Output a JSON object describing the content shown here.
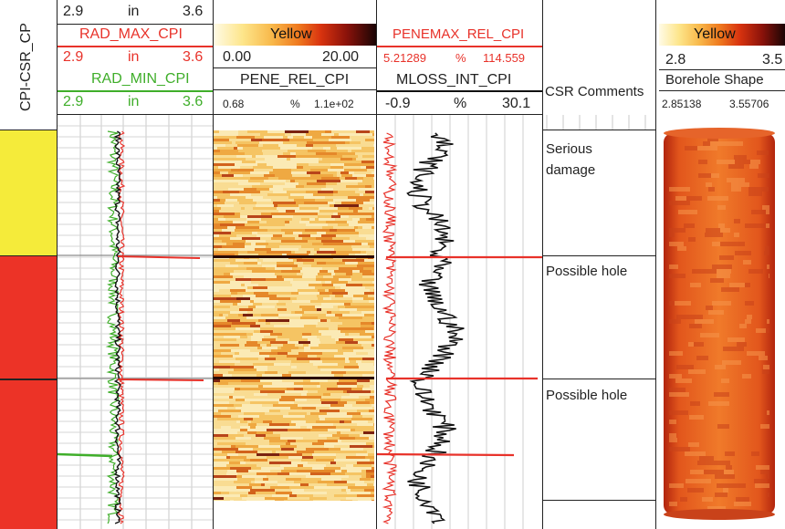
{
  "left_track": {
    "title": "CPI-CSR_CP",
    "zones": [
      {
        "color": "#f5eb3a",
        "start": 0.0,
        "end": 0.365
      },
      {
        "color": "#ec3327",
        "start": 0.365,
        "end": 0.72
      },
      {
        "color": "#ec3327",
        "start": 0.72,
        "end": 1.0
      }
    ]
  },
  "radius_track": {
    "row1": {
      "min": "2.9",
      "unit": "in",
      "max": "3.6"
    },
    "max_curve": {
      "name": "RAD_MAX_CPI",
      "min": "2.9",
      "unit": "in",
      "max": "3.6",
      "color": "#e8322a"
    },
    "min_curve": {
      "name": "RAD_MIN_CPI",
      "min": "2.9",
      "unit": "in",
      "max": "3.6",
      "color": "#3fae2a"
    }
  },
  "pene_track": {
    "palette_label": "Yellow",
    "scale_min": "0.00",
    "scale_max": "20.00",
    "curve_name": "PENE_REL_CPI",
    "range_min": "0.68",
    "unit": "%",
    "range_max": "1.1e+02"
  },
  "mloss_track": {
    "max_curve": {
      "name": "PENEMAX_REL_CPI",
      "min": "5.21289",
      "unit": "%",
      "max": "114.559",
      "color": "#e8322a"
    },
    "int_curve": {
      "name": "MLOSS_INT_CPI",
      "min": "-0.9",
      "unit": "%",
      "max": "30.1",
      "color": "#111111"
    }
  },
  "comments_track": {
    "title": "CSR Comments",
    "comments": [
      "Serious damage",
      "Possible hole",
      "Possible hole"
    ]
  },
  "borehole_track": {
    "palette_label": "Yellow",
    "scale_min": "2.8",
    "scale_max": "3.5",
    "title": "Borehole Shape",
    "range_min": "2.85138",
    "range_max": "3.55706"
  }
}
